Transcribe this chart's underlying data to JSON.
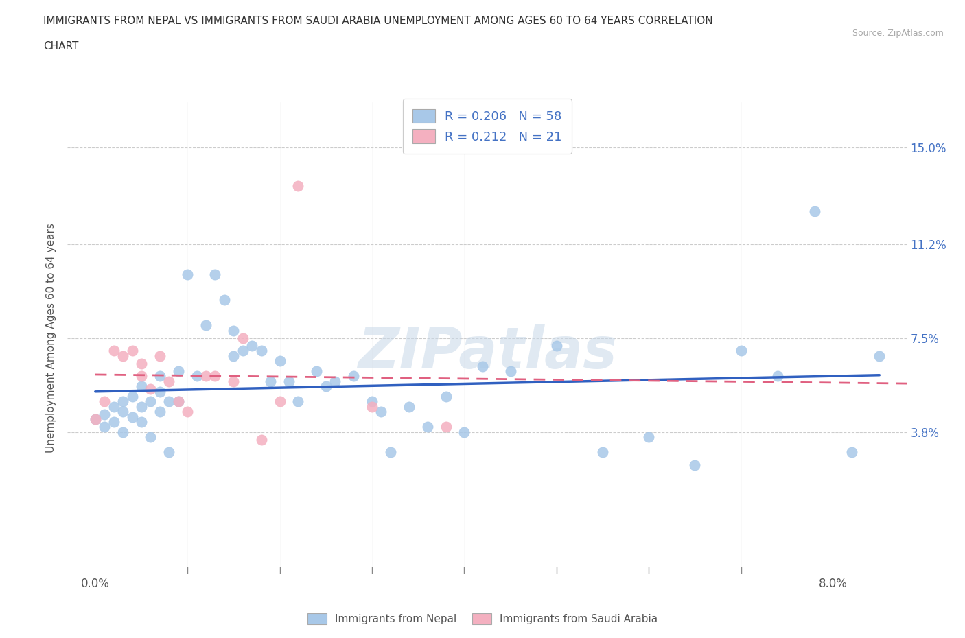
{
  "title_line1": "IMMIGRANTS FROM NEPAL VS IMMIGRANTS FROM SAUDI ARABIA UNEMPLOYMENT AMONG AGES 60 TO 64 YEARS CORRELATION",
  "title_line2": "CHART",
  "source_text": "Source: ZipAtlas.com",
  "ylabel": "Unemployment Among Ages 60 to 64 years",
  "y_tick_labels": [
    "3.8%",
    "7.5%",
    "11.2%",
    "15.0%"
  ],
  "y_tick_values": [
    0.038,
    0.075,
    0.112,
    0.15
  ],
  "xlim": [
    -0.003,
    0.088
  ],
  "ylim": [
    -0.018,
    0.168
  ],
  "R_nepal": 0.206,
  "N_nepal": 58,
  "R_saudi": 0.212,
  "N_saudi": 21,
  "nepal_color": "#a8c8e8",
  "saudi_color": "#f4b0c0",
  "nepal_line_color": "#3060c0",
  "saudi_line_color": "#e06080",
  "text_color": "#4472c4",
  "legend_text_nepal": "Immigrants from Nepal",
  "legend_text_saudi": "Immigrants from Saudi Arabia",
  "nepal_x": [
    0.0,
    0.001,
    0.001,
    0.002,
    0.002,
    0.003,
    0.003,
    0.003,
    0.004,
    0.004,
    0.005,
    0.005,
    0.005,
    0.006,
    0.006,
    0.007,
    0.007,
    0.007,
    0.008,
    0.008,
    0.009,
    0.009,
    0.01,
    0.011,
    0.012,
    0.013,
    0.014,
    0.015,
    0.015,
    0.016,
    0.017,
    0.018,
    0.019,
    0.02,
    0.021,
    0.022,
    0.024,
    0.025,
    0.026,
    0.028,
    0.03,
    0.031,
    0.032,
    0.034,
    0.036,
    0.038,
    0.04,
    0.042,
    0.045,
    0.05,
    0.055,
    0.06,
    0.065,
    0.07,
    0.074,
    0.078,
    0.082,
    0.085
  ],
  "nepal_y": [
    0.043,
    0.045,
    0.04,
    0.048,
    0.042,
    0.05,
    0.046,
    0.038,
    0.052,
    0.044,
    0.048,
    0.042,
    0.056,
    0.05,
    0.036,
    0.046,
    0.054,
    0.06,
    0.05,
    0.03,
    0.05,
    0.062,
    0.1,
    0.06,
    0.08,
    0.1,
    0.09,
    0.078,
    0.068,
    0.07,
    0.072,
    0.07,
    0.058,
    0.066,
    0.058,
    0.05,
    0.062,
    0.056,
    0.058,
    0.06,
    0.05,
    0.046,
    0.03,
    0.048,
    0.04,
    0.052,
    0.038,
    0.064,
    0.062,
    0.072,
    0.03,
    0.036,
    0.025,
    0.07,
    0.06,
    0.125,
    0.03,
    0.068
  ],
  "saudi_x": [
    0.0,
    0.001,
    0.002,
    0.003,
    0.004,
    0.005,
    0.005,
    0.006,
    0.007,
    0.008,
    0.009,
    0.01,
    0.012,
    0.013,
    0.015,
    0.016,
    0.018,
    0.02,
    0.022,
    0.03,
    0.038
  ],
  "saudi_y": [
    0.043,
    0.05,
    0.07,
    0.068,
    0.07,
    0.06,
    0.065,
    0.055,
    0.068,
    0.058,
    0.05,
    0.046,
    0.06,
    0.06,
    0.058,
    0.075,
    0.035,
    0.05,
    0.135,
    0.048,
    0.04
  ]
}
